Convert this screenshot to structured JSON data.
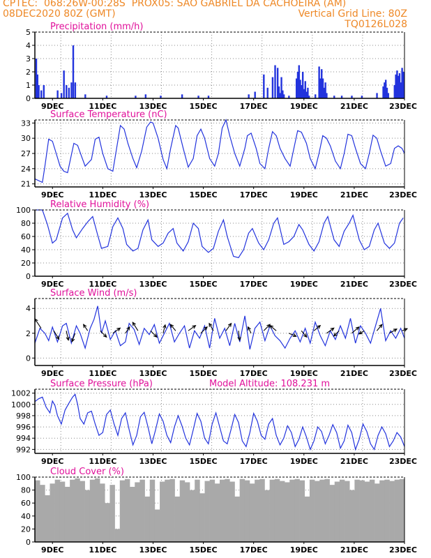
{
  "header": {
    "line1_left": "CPTEC:  068:26W-00:28S  PROX05: SAO GABRIEL DA CACHOEIRA (AM)",
    "line2_left": "08DEC2020 80Z (GMT)",
    "line2_right": "Vertical Grid Line: 80Z",
    "line3_right": "TQ0126L028"
  },
  "colors": {
    "header": "#ee8826",
    "title": "#e0109a",
    "series": "#2233dd",
    "cloud": "#a9a9a9",
    "arrow": "#000000"
  },
  "chart_data": [
    {
      "type": "bar",
      "title": "Precipitation (mm/h)",
      "ylim": [
        0,
        5
      ],
      "yticks": [
        "0",
        "1",
        "2",
        "3",
        "4",
        "5"
      ],
      "xlim_days": [
        8.3,
        23.0
      ],
      "xticks": [
        "9DEC",
        "11DEC",
        "13DEC",
        "15DEC",
        "17DEC",
        "19DEC",
        "21DEC",
        "23DEC"
      ],
      "x_day": [
        8.35,
        8.4,
        8.45,
        8.55,
        8.65,
        9.2,
        9.35,
        9.45,
        9.55,
        9.65,
        9.75,
        9.82,
        9.9,
        10.3,
        11.15,
        12.3,
        12.7,
        13.3,
        14.15,
        14.8,
        15.2,
        16.8,
        17.05,
        17.4,
        17.55,
        17.75,
        17.85,
        17.95,
        18.0,
        18.05,
        18.1,
        18.15,
        18.2,
        18.4,
        18.7,
        18.75,
        18.8,
        18.85,
        18.9,
        18.95,
        19.0,
        19.05,
        19.1,
        19.15,
        19.2,
        19.45,
        19.6,
        19.65,
        19.7,
        19.75,
        19.8,
        19.85,
        19.9,
        20.2,
        20.5,
        20.9,
        21.3,
        21.9,
        22.15,
        22.2,
        22.25,
        22.3,
        22.35,
        22.6,
        22.65,
        22.7,
        22.75,
        22.8,
        22.85,
        22.9,
        22.95
      ],
      "values": [
        3.0,
        1.8,
        1.0,
        0.6,
        1.0,
        0.6,
        0.4,
        2.1,
        1.0,
        0.8,
        1.2,
        4.0,
        1.2,
        0.3,
        0.2,
        0.2,
        0.3,
        0.2,
        0.3,
        0.2,
        0.2,
        0.3,
        0.5,
        1.8,
        0.8,
        1.6,
        2.5,
        2.3,
        0.9,
        0.4,
        1.6,
        0.6,
        0.3,
        0.2,
        1.5,
        2.0,
        2.5,
        1.4,
        1.0,
        2.0,
        0.7,
        1.3,
        0.5,
        0.8,
        0.2,
        0.3,
        2.4,
        1.5,
        2.2,
        1.5,
        0.8,
        1.2,
        0.4,
        0.2,
        0.2,
        0.2,
        0.2,
        0.4,
        0.9,
        1.2,
        1.4,
        0.8,
        0.4,
        1.0,
        1.8,
        2.1,
        1.7,
        1.9,
        1.2,
        2.3,
        2.0
      ]
    },
    {
      "type": "line",
      "title": "Surface Temperature (nC)",
      "ylim": [
        20.4,
        33.6
      ],
      "yticks": [
        "21",
        "24",
        "27",
        "30",
        "33"
      ],
      "xlim_days": [
        8.3,
        23.0
      ],
      "xticks": [
        "9DEC",
        "11DEC",
        "13DEC",
        "15DEC",
        "17DEC",
        "19DEC",
        "21DEC",
        "23DEC"
      ],
      "x_day": [
        8.3,
        8.6,
        8.7,
        8.85,
        9.0,
        9.15,
        9.3,
        9.45,
        9.6,
        9.85,
        10.0,
        10.15,
        10.3,
        10.55,
        10.7,
        10.85,
        11.0,
        11.2,
        11.4,
        11.55,
        11.7,
        11.85,
        12.0,
        12.2,
        12.35,
        12.55,
        12.75,
        12.9,
        13.0,
        13.2,
        13.4,
        13.55,
        13.7,
        13.9,
        14.0,
        14.2,
        14.4,
        14.6,
        14.75,
        14.9,
        15.05,
        15.25,
        15.45,
        15.6,
        15.75,
        15.9,
        16.05,
        16.25,
        16.45,
        16.65,
        16.75,
        16.9,
        17.1,
        17.25,
        17.45,
        17.6,
        17.75,
        17.9,
        18.05,
        18.25,
        18.45,
        18.6,
        18.75,
        18.9,
        19.1,
        19.25,
        19.45,
        19.6,
        19.75,
        19.9,
        20.05,
        20.25,
        20.45,
        20.6,
        20.75,
        20.9,
        21.05,
        21.25,
        21.45,
        21.6,
        21.75,
        21.9,
        22.05,
        22.25,
        22.45,
        22.6,
        22.75,
        22.9,
        23.0
      ],
      "values": [
        22.0,
        21.3,
        24.5,
        29.8,
        29.4,
        27.0,
        24.5,
        23.5,
        23.2,
        29.0,
        28.6,
        26.5,
        24.5,
        25.8,
        29.8,
        30.2,
        27.0,
        24.0,
        23.5,
        28.0,
        32.5,
        31.8,
        29.0,
        26.0,
        24.2,
        27.5,
        32.2,
        33.2,
        33.0,
        30.0,
        25.8,
        24.0,
        28.0,
        32.5,
        32.0,
        28.0,
        24.3,
        26.0,
        30.5,
        31.8,
        30.0,
        26.0,
        24.5,
        27.0,
        32.0,
        33.6,
        30.5,
        27.0,
        24.5,
        28.0,
        30.5,
        31.0,
        28.0,
        25.0,
        24.0,
        28.0,
        31.3,
        30.5,
        28.0,
        26.0,
        24.5,
        28.0,
        31.5,
        31.2,
        29.0,
        26.0,
        24.0,
        27.0,
        30.5,
        30.0,
        28.5,
        25.5,
        24.0,
        27.0,
        30.8,
        30.5,
        28.0,
        25.0,
        24.0,
        27.0,
        30.6,
        30.0,
        27.5,
        24.5,
        25.0,
        28.0,
        28.5,
        28.0,
        27.0
      ]
    },
    {
      "type": "line",
      "title": "Relative Humidity (%)",
      "ylim": [
        0,
        100
      ],
      "yticks": [
        "0",
        "20",
        "40",
        "60",
        "80",
        "100"
      ],
      "xlim_days": [
        8.3,
        23.0
      ],
      "xticks": [
        "9DEC",
        "11DEC",
        "13DEC",
        "15DEC",
        "17DEC",
        "19DEC",
        "21DEC",
        "23DEC"
      ],
      "x_day": [
        8.3,
        8.6,
        8.8,
        9.0,
        9.15,
        9.4,
        9.6,
        9.8,
        9.95,
        10.2,
        10.4,
        10.6,
        10.8,
        10.95,
        11.2,
        11.4,
        11.6,
        11.8,
        11.95,
        12.2,
        12.4,
        12.6,
        12.8,
        12.95,
        13.2,
        13.4,
        13.6,
        13.8,
        13.95,
        14.2,
        14.4,
        14.6,
        14.8,
        14.95,
        15.2,
        15.4,
        15.6,
        15.8,
        15.95,
        16.2,
        16.4,
        16.6,
        16.8,
        16.95,
        17.2,
        17.4,
        17.6,
        17.8,
        17.95,
        18.2,
        18.4,
        18.6,
        18.8,
        18.95,
        19.2,
        19.4,
        19.6,
        19.8,
        19.95,
        20.2,
        20.4,
        20.6,
        20.8,
        20.95,
        21.2,
        21.4,
        21.6,
        21.8,
        21.95,
        22.2,
        22.4,
        22.6,
        22.8,
        22.95
      ],
      "values": [
        100,
        100,
        78,
        50,
        55,
        88,
        95,
        70,
        58,
        72,
        82,
        90,
        62,
        42,
        45,
        75,
        88,
        72,
        48,
        38,
        42,
        70,
        85,
        55,
        45,
        50,
        65,
        72,
        50,
        38,
        52,
        80,
        72,
        45,
        36,
        42,
        68,
        85,
        60,
        30,
        28,
        40,
        65,
        72,
        50,
        40,
        55,
        80,
        88,
        48,
        52,
        60,
        78,
        70,
        48,
        38,
        52,
        80,
        90,
        55,
        45,
        68,
        80,
        92,
        55,
        40,
        45,
        70,
        80,
        50,
        42,
        50,
        80,
        88
      ]
    },
    {
      "type": "line",
      "title": "Surface Wind (m/s)",
      "ylim": [
        -0.6,
        4.8
      ],
      "yticks": [
        "0",
        "2",
        "4"
      ],
      "xlim_days": [
        8.3,
        23.0
      ],
      "xticks": [
        "9DEC",
        "11DEC",
        "13DEC",
        "15DEC",
        "17DEC",
        "19DEC",
        "21DEC",
        "23DEC"
      ],
      "x_day": [
        8.3,
        8.5,
        8.7,
        8.85,
        9.0,
        9.2,
        9.4,
        9.55,
        9.75,
        9.95,
        10.1,
        10.3,
        10.5,
        10.65,
        10.8,
        10.95,
        11.1,
        11.3,
        11.5,
        11.7,
        11.9,
        12.05,
        12.25,
        12.45,
        12.65,
        12.85,
        13.05,
        13.25,
        13.45,
        13.65,
        13.85,
        14.05,
        14.25,
        14.45,
        14.65,
        14.85,
        15.05,
        15.25,
        15.45,
        15.65,
        15.85,
        16.05,
        16.25,
        16.45,
        16.65,
        16.85,
        17.05,
        17.25,
        17.45,
        17.65,
        17.85,
        18.05,
        18.25,
        18.45,
        18.65,
        18.85,
        19.05,
        19.25,
        19.45,
        19.65,
        19.85,
        20.05,
        20.25,
        20.45,
        20.65,
        20.85,
        21.05,
        21.25,
        21.45,
        21.65,
        21.85,
        22.05,
        22.25,
        22.45,
        22.65,
        22.85,
        23.0
      ],
      "values": [
        1.2,
        2.4,
        2.0,
        1.4,
        2.5,
        1.3,
        2.6,
        2.8,
        1.2,
        2.6,
        2.0,
        0.8,
        2.4,
        3.1,
        4.2,
        2.0,
        3.0,
        1.5,
        2.2,
        1.0,
        1.3,
        2.8,
        2.3,
        1.1,
        2.4,
        1.9,
        2.7,
        1.2,
        2.0,
        2.8,
        1.3,
        2.0,
        2.6,
        0.8,
        2.2,
        1.6,
        2.6,
        0.8,
        3.2,
        1.6,
        2.4,
        1.0,
        2.8,
        1.3,
        3.4,
        0.7,
        2.4,
        2.9,
        1.4,
        2.6,
        1.8,
        1.4,
        0.8,
        1.6,
        2.2,
        1.3,
        2.4,
        1.2,
        2.9,
        1.8,
        1.0,
        2.2,
        1.5,
        2.6,
        1.6,
        3.2,
        1.2,
        2.6,
        2.0,
        1.2,
        2.6,
        4.0,
        1.4,
        2.2,
        1.6,
        2.4,
        1.6
      ],
      "vector_x_day": [
        8.55,
        9.05,
        9.55,
        9.9,
        10.4,
        10.9,
        11.4,
        11.9,
        12.4,
        12.9,
        13.4,
        13.9,
        14.4,
        14.9,
        15.4,
        15.9,
        16.4,
        16.9,
        17.4,
        17.9,
        18.4,
        18.9,
        19.4,
        19.9,
        20.4,
        20.9,
        21.4,
        21.9,
        22.4,
        22.9
      ],
      "vector_y": [
        2.4,
        2.2,
        2.2,
        2.0,
        2.2,
        2.2,
        2.0,
        2.0,
        2.2,
        2.2,
        2.0,
        2.2,
        2.2,
        2.0,
        2.2,
        2.2,
        2.2,
        2.0,
        2.2,
        2.2,
        2.0,
        2.2,
        2.2,
        2.0,
        2.2,
        2.0,
        2.2,
        2.2,
        2.0,
        2.2
      ],
      "vector_dx": [
        -0.3,
        0.25,
        0.1,
        -0.15,
        -0.2,
        0.3,
        0.35,
        0.2,
        -0.25,
        0.3,
        0.1,
        -0.25,
        0.35,
        0.3,
        -0.2,
        0.25,
        0.05,
        -0.15,
        0.3,
        -0.3,
        0.35,
        0.25,
        0.3,
        0.35,
        -0.25,
        0.35,
        -0.25,
        0.25,
        0.35,
        0.25
      ],
      "vector_dy": [
        0.45,
        -0.4,
        -0.45,
        -0.4,
        0.3,
        -0.3,
        0.25,
        0.3,
        0.4,
        -0.3,
        0.4,
        0.3,
        0.25,
        0.3,
        0.35,
        0.35,
        -0.45,
        0.3,
        0.3,
        0.25,
        -0.15,
        -0.3,
        0.25,
        0.25,
        -0.25,
        0.3,
        -0.15,
        0.3,
        0.2,
        0.1
      ]
    },
    {
      "type": "line",
      "title": "Surface Pressure (hPa)",
      "annotation": "Model Altitude: 108.231 m",
      "ylim": [
        991.3,
        1002.7
      ],
      "yticks": [
        "992",
        "994",
        "996",
        "998",
        "1000",
        "1002"
      ],
      "xlim_days": [
        8.3,
        23.0
      ],
      "xticks": [
        "9DEC",
        "11DEC",
        "13DEC",
        "15DEC",
        "17DEC",
        "19DEC",
        "21DEC",
        "23DEC"
      ],
      "x_day": [
        8.3,
        8.45,
        8.6,
        8.75,
        8.9,
        9.0,
        9.1,
        9.2,
        9.35,
        9.5,
        9.65,
        9.8,
        9.9,
        10.0,
        10.1,
        10.25,
        10.4,
        10.55,
        10.7,
        10.85,
        11.0,
        11.15,
        11.3,
        11.45,
        11.6,
        11.75,
        11.9,
        12.05,
        12.2,
        12.35,
        12.5,
        12.65,
        12.8,
        12.95,
        13.1,
        13.25,
        13.4,
        13.55,
        13.7,
        13.85,
        14.0,
        14.15,
        14.3,
        14.45,
        14.6,
        14.75,
        14.9,
        15.05,
        15.2,
        15.35,
        15.5,
        15.65,
        15.8,
        15.95,
        16.1,
        16.25,
        16.4,
        16.55,
        16.7,
        16.85,
        17.0,
        17.15,
        17.3,
        17.45,
        17.6,
        17.75,
        17.9,
        18.05,
        18.2,
        18.35,
        18.5,
        18.65,
        18.8,
        18.95,
        19.1,
        19.25,
        19.4,
        19.55,
        19.7,
        19.85,
        20.0,
        20.15,
        20.3,
        20.45,
        20.6,
        20.75,
        20.9,
        21.05,
        21.2,
        21.35,
        21.5,
        21.65,
        21.8,
        21.95,
        22.1,
        22.25,
        22.4,
        22.55,
        22.7,
        22.85,
        23.0
      ],
      "values": [
        1000.5,
        1001.0,
        1001.3,
        999.5,
        998.5,
        1000.6,
        999.8,
        998.0,
        996.5,
        999.0,
        1000.2,
        1001.3,
        1001.8,
        1000.0,
        997.5,
        996.5,
        998.5,
        998.8,
        996.5,
        994.5,
        995.0,
        998.2,
        999.0,
        996.5,
        994.5,
        997.5,
        998.5,
        995.5,
        992.8,
        994.5,
        997.8,
        998.6,
        996.0,
        993.0,
        995.5,
        998.3,
        997.0,
        994.5,
        993.2,
        996.0,
        998.0,
        996.2,
        994.0,
        992.8,
        995.5,
        998.4,
        997.0,
        994.0,
        993.0,
        996.5,
        998.5,
        996.0,
        993.5,
        993.0,
        995.5,
        998.2,
        996.8,
        993.5,
        992.5,
        995.0,
        998.4,
        997.0,
        994.5,
        993.8,
        996.5,
        997.5,
        994.5,
        992.8,
        994.0,
        996.2,
        995.0,
        992.5,
        993.8,
        996.0,
        994.2,
        992.0,
        993.5,
        996.0,
        995.2,
        993.0,
        994.5,
        996.4,
        995.0,
        992.2,
        993.5,
        996.3,
        995.0,
        992.0,
        993.8,
        996.5,
        995.2,
        993.0,
        992.0,
        994.5,
        996.0,
        994.8,
        992.5,
        993.5,
        995.0,
        994.2,
        992.5
      ]
    },
    {
      "type": "bar",
      "title": "Cloud Cover (%)",
      "ylim": [
        0,
        100
      ],
      "yticks": [
        "0",
        "20",
        "40",
        "60",
        "80",
        "100"
      ],
      "xlim_days": [
        8.3,
        23.0
      ],
      "xticks": [
        "9DEC",
        "11DEC",
        "13DEC",
        "15DEC",
        "17DEC",
        "19DEC",
        "21DEC",
        "23DEC"
      ],
      "x_day": [
        8.3,
        8.5,
        8.7,
        8.9,
        9.1,
        9.3,
        9.5,
        9.7,
        9.9,
        10.1,
        10.3,
        10.5,
        10.7,
        10.9,
        11.1,
        11.3,
        11.5,
        11.7,
        11.9,
        12.1,
        12.3,
        12.5,
        12.7,
        12.9,
        13.1,
        13.3,
        13.5,
        13.7,
        13.9,
        14.1,
        14.3,
        14.5,
        14.7,
        14.9,
        15.1,
        15.3,
        15.5,
        15.7,
        15.9,
        16.1,
        16.3,
        16.5,
        16.7,
        16.9,
        17.1,
        17.3,
        17.5,
        17.7,
        17.9,
        18.1,
        18.3,
        18.5,
        18.7,
        18.9,
        19.1,
        19.3,
        19.5,
        19.7,
        19.9,
        20.1,
        20.3,
        20.5,
        20.7,
        20.9,
        21.1,
        21.3,
        21.5,
        21.7,
        21.9,
        22.1,
        22.3,
        22.5,
        22.7,
        22.9
      ],
      "values": [
        95,
        88,
        72,
        90,
        96,
        93,
        85,
        96,
        98,
        94,
        80,
        96,
        98,
        90,
        60,
        88,
        20,
        95,
        97,
        85,
        92,
        96,
        70,
        96,
        50,
        93,
        96,
        97,
        70,
        95,
        92,
        80,
        96,
        75,
        94,
        96,
        90,
        96,
        97,
        93,
        70,
        97,
        95,
        90,
        96,
        97,
        80,
        96,
        97,
        94,
        92,
        96,
        97,
        95,
        70,
        96,
        94,
        96,
        97,
        88,
        93,
        96,
        94,
        80,
        96,
        95,
        93,
        96,
        90,
        95,
        96,
        94,
        96,
        97
      ]
    }
  ]
}
